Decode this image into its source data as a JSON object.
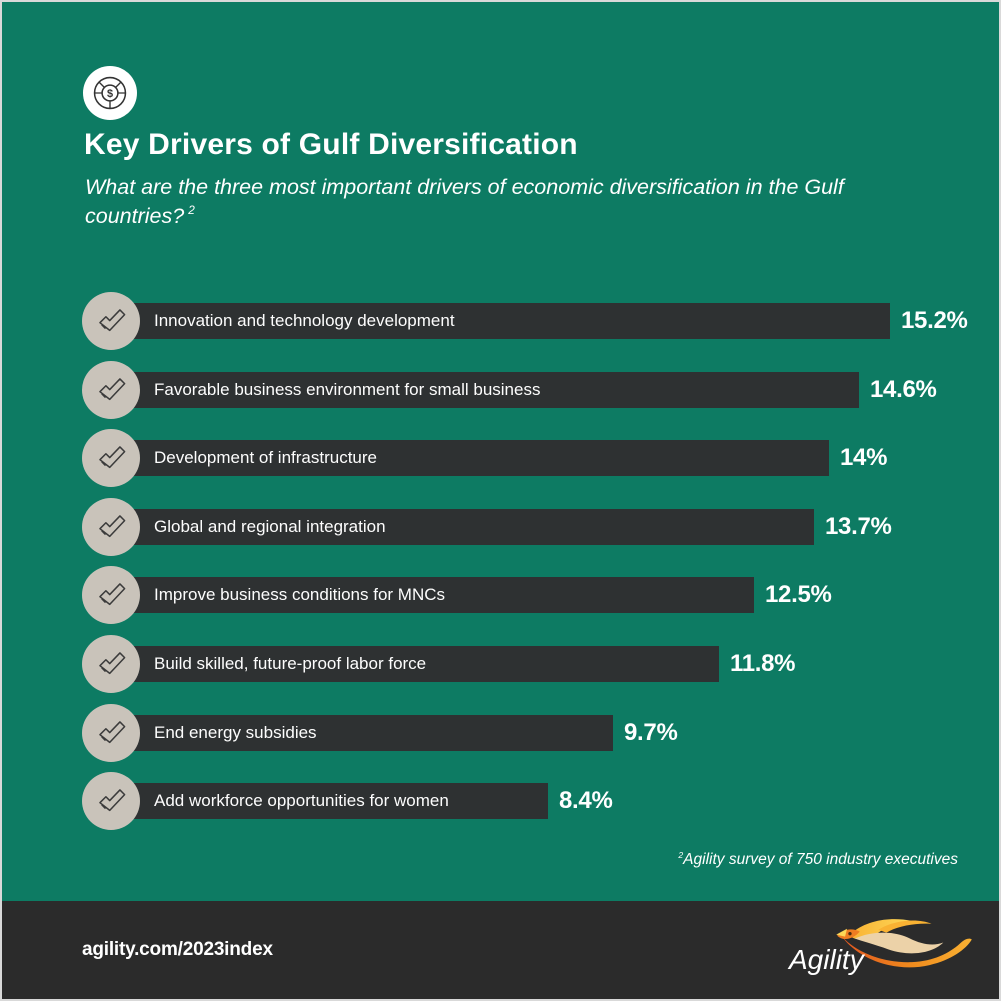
{
  "colors": {
    "background": "#0d7b63",
    "bar": "#2e3132",
    "footer_band": "#2b2b2b",
    "check_circle": "#c9c3ba",
    "text": "#ffffff",
    "logo_gold": "#f9b233",
    "logo_orange": "#ef7d22",
    "logo_deep_orange": "#e2551f",
    "logo_cream": "#ecd2a8"
  },
  "header": {
    "icon": "donut-dollar-icon",
    "icon_symbol": "$",
    "title": "Key Drivers of Gulf Diversification",
    "subtitle": "What are the three most important drivers of economic diversification in the Gulf countries?",
    "subtitle_superscript": "2"
  },
  "chart_data": {
    "type": "bar",
    "orientation": "horizontal",
    "title": "Key Drivers of Gulf Diversification",
    "categories": [
      "Innovation and technology development",
      "Favorable business environment for small business",
      "Development of infrastructure",
      "Global and regional integration",
      "Improve business conditions for MNCs",
      "Build skilled, future-proof labor force",
      "End energy subsidies",
      "Add workforce opportunities for women"
    ],
    "values": [
      15.2,
      14.6,
      14,
      13.7,
      12.5,
      11.8,
      9.7,
      8.4
    ],
    "value_labels": [
      "15.2%",
      "14.6%",
      "14%",
      "13.7%",
      "12.5%",
      "11.8%",
      "9.7%",
      "8.4%"
    ],
    "xlim": [
      0,
      16
    ],
    "xlabel": "",
    "ylabel": "",
    "grid": false,
    "legend": false,
    "row_marker": "check-icon"
  },
  "footnote": {
    "superscript": "2",
    "text": "Agility survey of 750 industry executives"
  },
  "footer": {
    "url": "agility.com/2023index",
    "brand": "Agility",
    "logo": "agility-phoenix-logo"
  }
}
